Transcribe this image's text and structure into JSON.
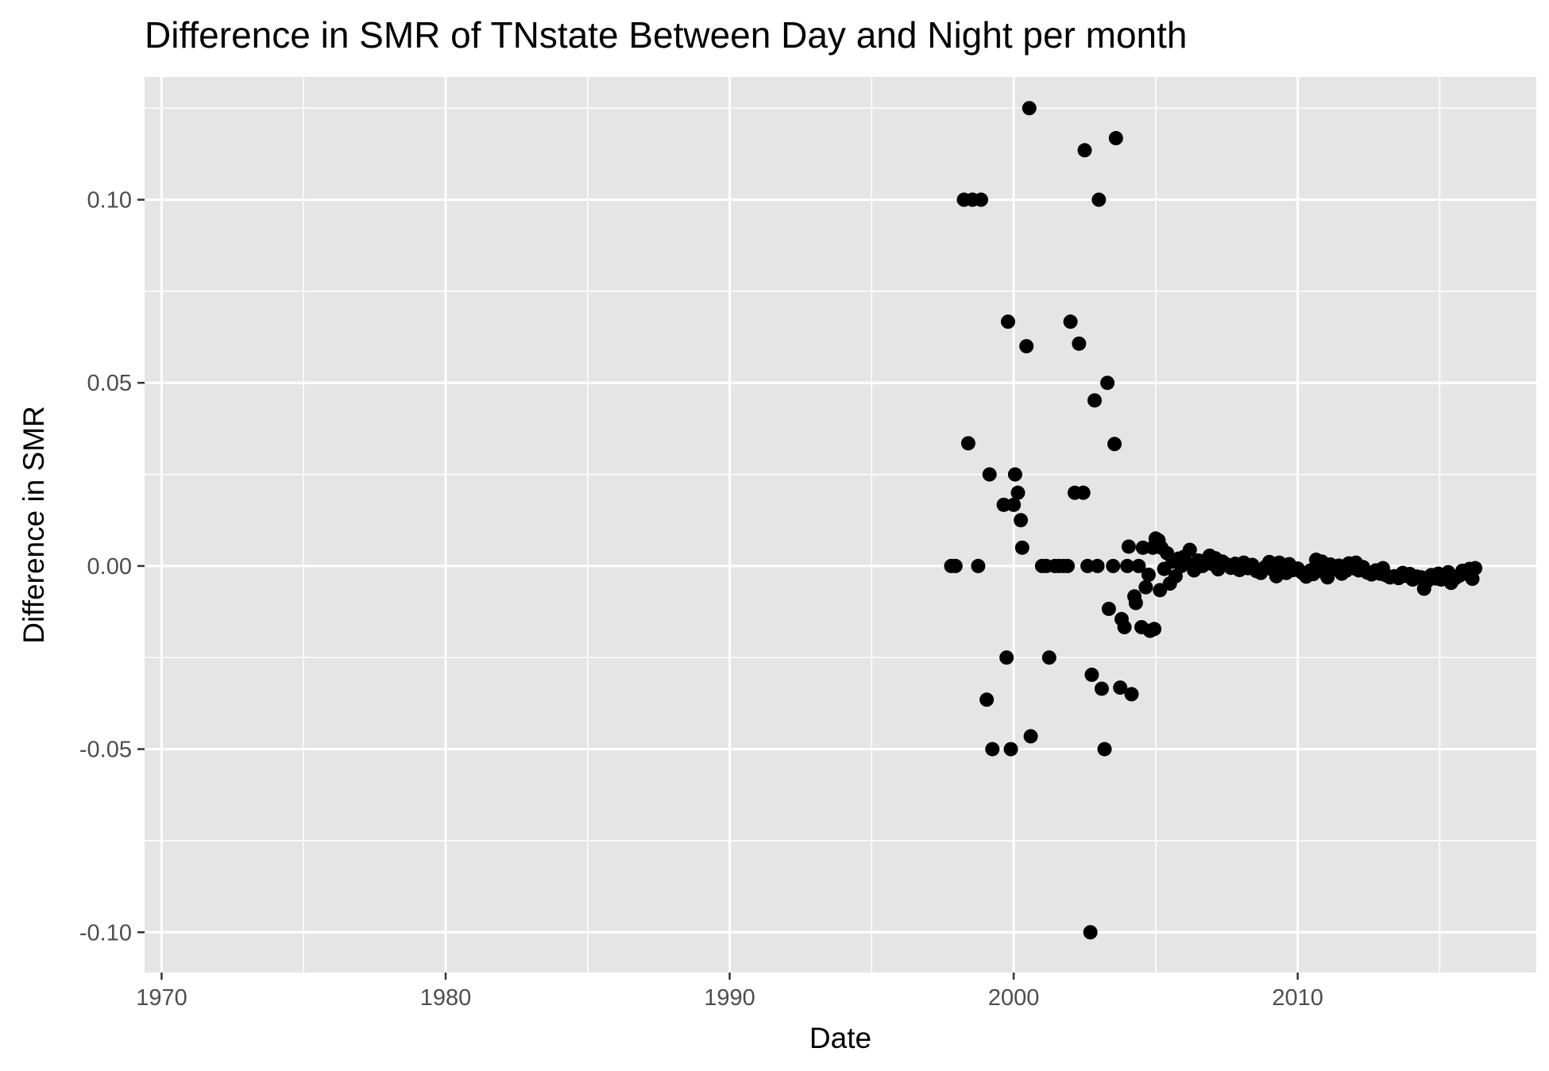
{
  "chart_data": {
    "type": "scatter",
    "title": "Difference in SMR of TNstate Between Day and Night per month",
    "xlabel": "Date",
    "ylabel": "Difference in SMR",
    "xlim": [
      1969.4,
      2018.4
    ],
    "ylim": [
      -0.111,
      0.1335
    ],
    "x_ticks": [
      1970,
      1980,
      1990,
      2000,
      2010
    ],
    "x_tick_labels": [
      "1970",
      "1980",
      "1990",
      "2000",
      "2010"
    ],
    "x_minor": [
      1975,
      1985,
      1995,
      2005,
      2015
    ],
    "y_ticks": [
      -0.1,
      -0.05,
      0.0,
      0.05,
      0.1
    ],
    "y_tick_labels": [
      "-0.10",
      "-0.05",
      "0.00",
      "0.05",
      "0.10"
    ],
    "y_minor": [
      -0.075,
      -0.025,
      0.025,
      0.075,
      0.125
    ],
    "grid": true,
    "legend": "none",
    "point_color": "#000000",
    "panel_color": "#e5e5e5",
    "points": [
      {
        "x": 1997.8,
        "y": 0.0
      },
      {
        "x": 1997.95,
        "y": 0.0
      },
      {
        "x": 1998.25,
        "y": 0.1
      },
      {
        "x": 1998.4,
        "y": 0.0335
      },
      {
        "x": 1998.55,
        "y": 0.1
      },
      {
        "x": 1998.75,
        "y": 0.0
      },
      {
        "x": 1998.85,
        "y": 0.1
      },
      {
        "x": 1999.05,
        "y": -0.0365
      },
      {
        "x": 1999.15,
        "y": 0.025
      },
      {
        "x": 1999.25,
        "y": -0.05
      },
      {
        "x": 1999.65,
        "y": 0.0167
      },
      {
        "x": 1999.75,
        "y": -0.025
      },
      {
        "x": 1999.8,
        "y": 0.0667
      },
      {
        "x": 1999.9,
        "y": -0.05
      },
      {
        "x": 2000.0,
        "y": 0.0167
      },
      {
        "x": 2000.05,
        "y": 0.025
      },
      {
        "x": 2000.15,
        "y": 0.02
      },
      {
        "x": 2000.25,
        "y": 0.0125
      },
      {
        "x": 2000.3,
        "y": 0.005
      },
      {
        "x": 2000.45,
        "y": 0.06
      },
      {
        "x": 2000.55,
        "y": 0.125
      },
      {
        "x": 2000.6,
        "y": -0.0465
      },
      {
        "x": 2001.0,
        "y": 0.0
      },
      {
        "x": 2001.15,
        "y": 0.0
      },
      {
        "x": 2001.25,
        "y": -0.025
      },
      {
        "x": 2001.45,
        "y": 0.0
      },
      {
        "x": 2001.6,
        "y": 0.0
      },
      {
        "x": 2001.75,
        "y": 0.0
      },
      {
        "x": 2001.9,
        "y": 0.0
      },
      {
        "x": 2002.0,
        "y": 0.0667
      },
      {
        "x": 2002.15,
        "y": 0.02
      },
      {
        "x": 2002.3,
        "y": 0.0607
      },
      {
        "x": 2002.45,
        "y": 0.02
      },
      {
        "x": 2002.5,
        "y": 0.1135
      },
      {
        "x": 2002.6,
        "y": 0.0
      },
      {
        "x": 2002.7,
        "y": -0.1
      },
      {
        "x": 2002.75,
        "y": -0.0297
      },
      {
        "x": 2002.85,
        "y": 0.0452
      },
      {
        "x": 2002.95,
        "y": 0.0
      },
      {
        "x": 2003.0,
        "y": 0.1
      },
      {
        "x": 2003.1,
        "y": -0.0335
      },
      {
        "x": 2003.2,
        "y": -0.05
      },
      {
        "x": 2003.3,
        "y": 0.05
      },
      {
        "x": 2003.35,
        "y": -0.0117
      },
      {
        "x": 2003.5,
        "y": 0.0
      },
      {
        "x": 2003.55,
        "y": 0.0333
      },
      {
        "x": 2003.6,
        "y": 0.1168
      },
      {
        "x": 2003.75,
        "y": -0.0332
      },
      {
        "x": 2003.8,
        "y": -0.0145
      },
      {
        "x": 2003.9,
        "y": -0.0167
      },
      {
        "x": 2004.0,
        "y": 0.0
      },
      {
        "x": 2004.05,
        "y": 0.0053
      },
      {
        "x": 2004.15,
        "y": -0.035
      },
      {
        "x": 2004.25,
        "y": -0.0083
      },
      {
        "x": 2004.3,
        "y": -0.0101
      },
      {
        "x": 2004.4,
        "y": 0.0
      },
      {
        "x": 2004.5,
        "y": -0.0167
      },
      {
        "x": 2004.55,
        "y": 0.005
      },
      {
        "x": 2004.65,
        "y": -0.0058
      },
      {
        "x": 2004.75,
        "y": -0.0024
      },
      {
        "x": 2004.8,
        "y": -0.0177
      },
      {
        "x": 2004.9,
        "y": 0.005
      },
      {
        "x": 2004.95,
        "y": -0.0172
      },
      {
        "x": 2005.0,
        "y": 0.0075
      },
      {
        "x": 2005.1,
        "y": 0.007
      },
      {
        "x": 2005.15,
        "y": -0.0066
      },
      {
        "x": 2005.2,
        "y": 0.005
      },
      {
        "x": 2005.3,
        "y": -0.0008
      },
      {
        "x": 2005.4,
        "y": 0.0035
      },
      {
        "x": 2005.5,
        "y": -0.0048
      },
      {
        "x": 2005.6,
        "y": 0.0012
      },
      {
        "x": 2005.7,
        "y": -0.0028
      },
      {
        "x": 2005.8,
        "y": 0.002
      },
      {
        "x": 2005.9,
        "y": 0.0
      },
      {
        "x": 2006.0,
        "y": 0.0025
      },
      {
        "x": 2006.1,
        "y": 0.0008
      },
      {
        "x": 2006.2,
        "y": 0.0044
      },
      {
        "x": 2006.35,
        "y": -0.0012
      },
      {
        "x": 2006.5,
        "y": 0.0015
      },
      {
        "x": 2006.65,
        "y": 0.0
      },
      {
        "x": 2006.8,
        "y": 0.0018
      },
      {
        "x": 2006.9,
        "y": 0.0028
      },
      {
        "x": 2007.0,
        "y": 0.0005
      },
      {
        "x": 2007.1,
        "y": 0.0021
      },
      {
        "x": 2007.2,
        "y": -0.0009
      },
      {
        "x": 2007.35,
        "y": 0.0012
      },
      {
        "x": 2007.5,
        "y": 0.0004
      },
      {
        "x": 2007.65,
        "y": -0.0005
      },
      {
        "x": 2007.8,
        "y": 0.0006
      },
      {
        "x": 2007.95,
        "y": -0.0011
      },
      {
        "x": 2008.1,
        "y": 0.0009
      },
      {
        "x": 2008.25,
        "y": -0.0006
      },
      {
        "x": 2008.4,
        "y": 0.0003
      },
      {
        "x": 2008.55,
        "y": -0.0014
      },
      {
        "x": 2008.7,
        "y": -0.0019
      },
      {
        "x": 2008.85,
        "y": -0.0003
      },
      {
        "x": 2009.0,
        "y": 0.0011
      },
      {
        "x": 2009.1,
        "y": -0.0009
      },
      {
        "x": 2009.25,
        "y": -0.0028
      },
      {
        "x": 2009.35,
        "y": 0.0009
      },
      {
        "x": 2009.5,
        "y": -0.0004
      },
      {
        "x": 2009.6,
        "y": -0.0019
      },
      {
        "x": 2009.7,
        "y": 0.0005
      },
      {
        "x": 2009.85,
        "y": -0.0011
      },
      {
        "x": 2010.0,
        "y": -0.0007
      },
      {
        "x": 2010.15,
        "y": -0.0018
      },
      {
        "x": 2010.3,
        "y": -0.0029
      },
      {
        "x": 2010.45,
        "y": -0.0012
      },
      {
        "x": 2010.55,
        "y": -0.0022
      },
      {
        "x": 2010.65,
        "y": 0.0017
      },
      {
        "x": 2010.75,
        "y": -0.0004
      },
      {
        "x": 2010.85,
        "y": 0.0012
      },
      {
        "x": 2010.95,
        "y": -0.0018
      },
      {
        "x": 2011.05,
        "y": -0.0031
      },
      {
        "x": 2011.15,
        "y": 0.0004
      },
      {
        "x": 2011.3,
        "y": -0.0009
      },
      {
        "x": 2011.45,
        "y": 0.0001
      },
      {
        "x": 2011.55,
        "y": -0.0021
      },
      {
        "x": 2011.7,
        "y": -0.0013
      },
      {
        "x": 2011.8,
        "y": 0.0007
      },
      {
        "x": 2011.95,
        "y": -0.0006
      },
      {
        "x": 2012.05,
        "y": 0.0009
      },
      {
        "x": 2012.15,
        "y": -0.0012
      },
      {
        "x": 2012.3,
        "y": -0.0003
      },
      {
        "x": 2012.45,
        "y": -0.0018
      },
      {
        "x": 2012.6,
        "y": -0.0023
      },
      {
        "x": 2012.75,
        "y": -0.0012
      },
      {
        "x": 2012.9,
        "y": -0.0021
      },
      {
        "x": 2013.0,
        "y": -0.0006
      },
      {
        "x": 2013.1,
        "y": -0.0025
      },
      {
        "x": 2013.25,
        "y": -0.0031
      },
      {
        "x": 2013.4,
        "y": -0.0028
      },
      {
        "x": 2013.55,
        "y": -0.0033
      },
      {
        "x": 2013.7,
        "y": -0.0019
      },
      {
        "x": 2013.8,
        "y": -0.0027
      },
      {
        "x": 2013.95,
        "y": -0.0022
      },
      {
        "x": 2014.05,
        "y": -0.0037
      },
      {
        "x": 2014.2,
        "y": -0.0029
      },
      {
        "x": 2014.35,
        "y": -0.0031
      },
      {
        "x": 2014.45,
        "y": -0.0062
      },
      {
        "x": 2014.55,
        "y": -0.0042
      },
      {
        "x": 2014.7,
        "y": -0.0025
      },
      {
        "x": 2014.85,
        "y": -0.0034
      },
      {
        "x": 2014.95,
        "y": -0.0021
      },
      {
        "x": 2015.05,
        "y": -0.0037
      },
      {
        "x": 2015.15,
        "y": -0.0028
      },
      {
        "x": 2015.3,
        "y": -0.0017
      },
      {
        "x": 2015.4,
        "y": -0.0046
      },
      {
        "x": 2015.55,
        "y": -0.0033
      },
      {
        "x": 2015.7,
        "y": -0.0026
      },
      {
        "x": 2015.8,
        "y": -0.0013
      },
      {
        "x": 2015.95,
        "y": -0.0021
      },
      {
        "x": 2016.05,
        "y": -0.0008
      },
      {
        "x": 2016.15,
        "y": -0.0035
      },
      {
        "x": 2016.25,
        "y": -0.0006
      }
    ]
  }
}
